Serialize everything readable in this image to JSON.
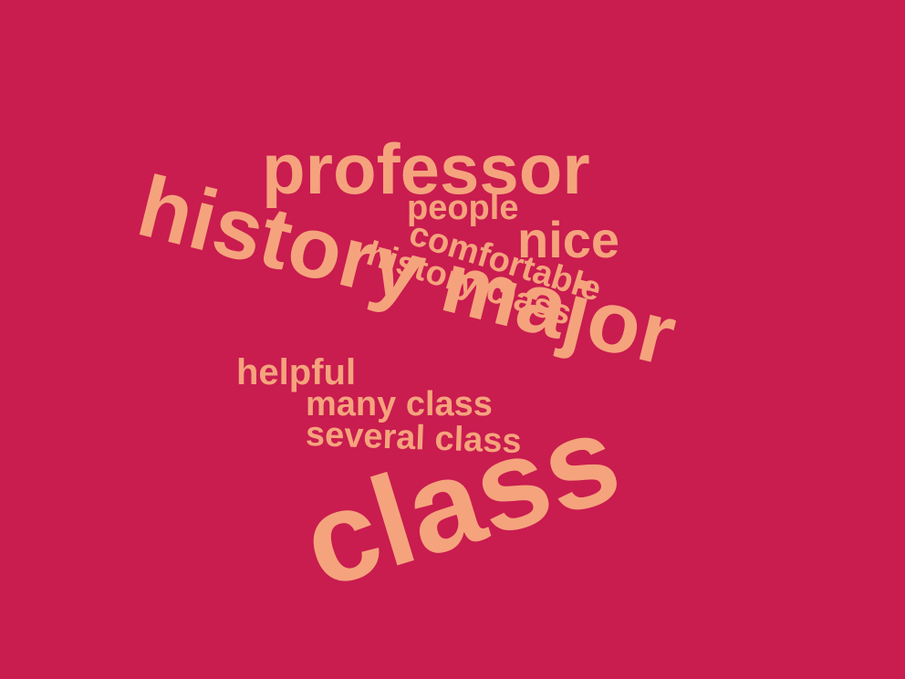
{
  "colors": {
    "background": "#C91C4F",
    "word": "#F5A37D"
  },
  "words": {
    "class": "class",
    "history_major": "history major",
    "professor": "professor",
    "nice": "nice",
    "people": "people",
    "comfortable": "comfortable",
    "history_class": "history class",
    "helpful": "helpful",
    "many_class": "many class",
    "several_class": "several class"
  }
}
